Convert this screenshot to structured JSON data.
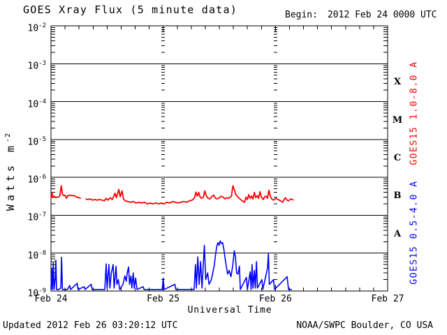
{
  "header": {
    "title": "GOES Xray Flux (5 minute data)",
    "begin_label": "Begin:",
    "begin_value": "2012 Feb 24 0000 UTC"
  },
  "footer": {
    "updated": "Updated 2012 Feb 26 03:20:12 UTC",
    "source": "NOAA/SWPC Boulder, CO USA"
  },
  "axes": {
    "xlabel": "Universal Time",
    "ylabel_base": "Watts m",
    "ylabel_sup": "-2",
    "y_tick_base": "10",
    "y_tick_exponents": [
      "-2",
      "-3",
      "-4",
      "-5",
      "-6",
      "-7",
      "-8",
      "-9"
    ],
    "x_tick_labels": [
      "Feb 24",
      "Feb 25",
      "Feb 26",
      "Feb 27"
    ],
    "class_letters": [
      "X",
      "M",
      "C",
      "B",
      "A"
    ]
  },
  "colors": {
    "axis": "#000000",
    "background": "#ffffff",
    "long_channel": "#ff0000",
    "short_channel": "#0000ff"
  },
  "chart_data": {
    "type": "line",
    "title": "GOES Xray Flux (5 minute data)",
    "xlabel": "Universal Time",
    "ylabel": "Watts m^-2",
    "x_unit": "hours since 2012 Feb 24 0000 UTC",
    "x_range_hours": [
      0,
      72
    ],
    "x_day_tick_hours": [
      0,
      24,
      48,
      72
    ],
    "x_minor_tick_hours": 3,
    "y_scale": "log",
    "y_limit_exponents": [
      -9,
      -2
    ],
    "grid_day_lines_hours": [
      24,
      48
    ],
    "flare_class_bands": {
      "X": [
        -4,
        -3
      ],
      "M": [
        -5,
        -4
      ],
      "C": [
        -6,
        -5
      ],
      "B": [
        -7,
        -6
      ],
      "A": [
        -8,
        -7
      ]
    },
    "series": [
      {
        "name": "GOES15 1.0-8.0 A",
        "color": "#ff0000",
        "points": [
          [
            0,
            3e-07
          ],
          [
            0.2,
            4e-07
          ],
          [
            0.4,
            2.9e-07
          ],
          [
            0.7,
            3.2e-07
          ],
          [
            1.0,
            2.9e-07
          ],
          [
            1.3,
            3e-07
          ],
          [
            1.6,
            3e-07
          ],
          [
            1.9,
            3.3e-07
          ],
          [
            2.2,
            6e-07
          ],
          [
            2.45,
            3.6e-07
          ],
          [
            2.7,
            3.3e-07
          ],
          [
            3.0,
            3.4e-07
          ],
          [
            3.3,
            2.8e-07
          ],
          [
            3.6,
            3.3e-07
          ],
          [
            4.0,
            3.4e-07
          ],
          [
            4.5,
            3.3e-07
          ],
          [
            5.0,
            3.3e-07
          ],
          [
            5.5,
            3e-07
          ],
          [
            6.0,
            2.9e-07
          ],
          [
            6.4,
            2.8e-07
          ],
          [
            6.7,
            null
          ],
          [
            7.4,
            2.7e-07
          ],
          [
            7.9,
            2.6e-07
          ],
          [
            8.4,
            2.7e-07
          ],
          [
            8.9,
            2.5e-07
          ],
          [
            9.4,
            2.6e-07
          ],
          [
            9.9,
            2.5e-07
          ],
          [
            10.4,
            2.6e-07
          ],
          [
            10.9,
            2.5e-07
          ],
          [
            11.4,
            2.4e-07
          ],
          [
            11.8,
            2.8e-07
          ],
          [
            12.2,
            2.5e-07
          ],
          [
            12.7,
            2.9e-07
          ],
          [
            13.1,
            2.6e-07
          ],
          [
            13.7,
            3.8e-07
          ],
          [
            14.0,
            2.9e-07
          ],
          [
            14.5,
            4.8e-07
          ],
          [
            14.8,
            3.1e-07
          ],
          [
            15.2,
            4.4e-07
          ],
          [
            15.5,
            2.7e-07
          ],
          [
            15.9,
            2.4e-07
          ],
          [
            16.4,
            2.3e-07
          ],
          [
            17.0,
            2.2e-07
          ],
          [
            17.6,
            2.3e-07
          ],
          [
            18.2,
            2.1e-07
          ],
          [
            18.8,
            2.2e-07
          ],
          [
            19.4,
            2.1e-07
          ],
          [
            20.0,
            2.2e-07
          ],
          [
            20.6,
            2e-07
          ],
          [
            21.2,
            2.1e-07
          ],
          [
            21.8,
            2e-07
          ],
          [
            22.4,
            2.1e-07
          ],
          [
            23.0,
            2e-07
          ],
          [
            23.6,
            2.1e-07
          ],
          [
            24.2,
            2e-07
          ],
          [
            24.8,
            2.2e-07
          ],
          [
            25.4,
            2.1e-07
          ],
          [
            26.0,
            2.3e-07
          ],
          [
            26.6,
            2.2e-07
          ],
          [
            27.2,
            2.1e-07
          ],
          [
            27.8,
            2.2e-07
          ],
          [
            28.4,
            2.3e-07
          ],
          [
            29.0,
            2.2e-07
          ],
          [
            29.6,
            2.4e-07
          ],
          [
            30.2,
            2.5e-07
          ],
          [
            30.7,
            2.9e-07
          ],
          [
            31.0,
            4.1e-07
          ],
          [
            31.3,
            3.2e-07
          ],
          [
            31.6,
            4e-07
          ],
          [
            31.9,
            3e-07
          ],
          [
            32.2,
            2.8e-07
          ],
          [
            32.6,
            3e-07
          ],
          [
            32.9,
            4.4e-07
          ],
          [
            33.2,
            3.3e-07
          ],
          [
            33.6,
            2.8e-07
          ],
          [
            34.0,
            2.7e-07
          ],
          [
            34.4,
            3.1e-07
          ],
          [
            34.8,
            3.4e-07
          ],
          [
            35.2,
            2.8e-07
          ],
          [
            35.6,
            2.7e-07
          ],
          [
            36.0,
            2.9e-07
          ],
          [
            36.4,
            3.2e-07
          ],
          [
            36.8,
            3e-07
          ],
          [
            37.2,
            2.7e-07
          ],
          [
            37.6,
            2.9e-07
          ],
          [
            38.0,
            2.8e-07
          ],
          [
            38.3,
            3e-07
          ],
          [
            38.6,
            3.2e-07
          ],
          [
            38.9,
            6e-07
          ],
          [
            39.2,
            4.8e-07
          ],
          [
            39.5,
            3.6e-07
          ],
          [
            39.9,
            3.1e-07
          ],
          [
            40.4,
            2.7e-07
          ],
          [
            40.9,
            2.4e-07
          ],
          [
            41.4,
            2.2e-07
          ],
          [
            41.7,
            3e-07
          ],
          [
            42.0,
            2.6e-07
          ],
          [
            42.3,
            3.5e-07
          ],
          [
            42.6,
            2.8e-07
          ],
          [
            42.9,
            3.2e-07
          ],
          [
            43.2,
            2.7e-07
          ],
          [
            43.5,
            4e-07
          ],
          [
            43.8,
            2.9e-07
          ],
          [
            44.1,
            3.3e-07
          ],
          [
            44.4,
            2.8e-07
          ],
          [
            44.7,
            4.2e-07
          ],
          [
            45.0,
            3e-07
          ],
          [
            45.4,
            2.6e-07
          ],
          [
            45.7,
            3.1e-07
          ],
          [
            46.0,
            3.2e-07
          ],
          [
            46.3,
            2.8e-07
          ],
          [
            46.6,
            4.6e-07
          ],
          [
            46.9,
            3.2e-07
          ],
          [
            47.2,
            2.7e-07
          ],
          [
            47.6,
            2.5e-07
          ],
          [
            48.1,
            2.8e-07
          ],
          [
            48.6,
            2.6e-07
          ],
          [
            49.1,
            2.4e-07
          ],
          [
            49.5,
            2.2e-07
          ],
          [
            50.1,
            2.9e-07
          ],
          [
            50.5,
            2.5e-07
          ],
          [
            50.8,
            2.4e-07
          ],
          [
            51.3,
            2.7e-07
          ],
          [
            51.9,
            2.5e-07
          ]
        ]
      },
      {
        "name": "GOES15 0.5-4.0 A",
        "color": "#0000ff",
        "points": [
          [
            0,
            1.1e-09
          ],
          [
            0.15,
            4e-09
          ],
          [
            0.3,
            1.1e-09
          ],
          [
            0.5,
            5.5e-09
          ],
          [
            0.65,
            1.1e-09
          ],
          [
            0.9,
            2e-09
          ],
          [
            1.05,
            6.5e-09
          ],
          [
            1.2,
            1.1e-09
          ],
          [
            1.6,
            1.1e-09
          ],
          [
            2.1,
            1.2e-09
          ],
          [
            2.25,
            7.8e-09
          ],
          [
            2.45,
            1.1e-09
          ],
          [
            3.5,
            1.1e-09
          ],
          [
            4.0,
            1.4e-09
          ],
          [
            4.2,
            1.1e-09
          ],
          [
            5.6,
            1.6e-09
          ],
          [
            5.8,
            1.1e-09
          ],
          [
            7.1,
            1.3e-09
          ],
          [
            7.3,
            1.1e-09
          ],
          [
            8.6,
            1.5e-09
          ],
          [
            8.8,
            1.1e-09
          ],
          [
            10.5,
            1.1e-09
          ],
          [
            11.5,
            1.1e-09
          ],
          [
            11.8,
            5.2e-09
          ],
          [
            12.0,
            1.2e-09
          ],
          [
            12.4,
            5e-09
          ],
          [
            12.6,
            1.2e-09
          ],
          [
            12.9,
            3e-09
          ],
          [
            13.3,
            5e-09
          ],
          [
            13.5,
            1.2e-09
          ],
          [
            13.9,
            4.5e-09
          ],
          [
            14.1,
            1.5e-09
          ],
          [
            14.4,
            2e-09
          ],
          [
            14.7,
            1.1e-09
          ],
          [
            15.4,
            1.5e-09
          ],
          [
            15.8,
            2.5e-09
          ],
          [
            16.1,
            1.8e-09
          ],
          [
            16.3,
            3e-09
          ],
          [
            16.6,
            4.3e-09
          ],
          [
            16.8,
            1.5e-09
          ],
          [
            17.1,
            2.5e-09
          ],
          [
            17.3,
            1.2e-09
          ],
          [
            17.6,
            3e-09
          ],
          [
            17.8,
            1.2e-09
          ],
          [
            18.1,
            2.2e-09
          ],
          [
            18.4,
            1.1e-09
          ],
          [
            19.7,
            1.3e-09
          ],
          [
            19.9,
            1.1e-09
          ],
          [
            23.8,
            1.1e-09
          ],
          [
            24.0,
            2.2e-09
          ],
          [
            24.2,
            1.1e-09
          ],
          [
            26.5,
            1.5e-09
          ],
          [
            26.7,
            1.1e-09
          ],
          [
            30.6,
            1.1e-09
          ],
          [
            30.9,
            5e-09
          ],
          [
            31.1,
            1.2e-09
          ],
          [
            31.4,
            8e-09
          ],
          [
            31.7,
            1.5e-09
          ],
          [
            32.0,
            6e-09
          ],
          [
            32.3,
            1.2e-09
          ],
          [
            32.8,
            1.6e-08
          ],
          [
            33.1,
            2e-09
          ],
          [
            33.5,
            3e-09
          ],
          [
            33.8,
            1.5e-09
          ],
          [
            34.3,
            2e-09
          ],
          [
            34.9,
            4.5e-09
          ],
          [
            35.2,
            9e-09
          ],
          [
            35.45,
            1.5e-08
          ],
          [
            35.7,
            1.9e-08
          ],
          [
            35.95,
            1.6e-08
          ],
          [
            36.2,
            2.1e-08
          ],
          [
            36.45,
            1.8e-08
          ],
          [
            36.7,
            1.9e-08
          ],
          [
            36.95,
            1.3e-08
          ],
          [
            37.2,
            8e-09
          ],
          [
            37.5,
            4.5e-09
          ],
          [
            37.8,
            2.8e-09
          ],
          [
            38.1,
            3.5e-09
          ],
          [
            38.5,
            2.4e-09
          ],
          [
            38.9,
            5e-09
          ],
          [
            39.2,
            1.15e-08
          ],
          [
            39.45,
            8e-09
          ],
          [
            39.7,
            3e-09
          ],
          [
            40.0,
            2.8e-09
          ],
          [
            40.3,
            4.5e-09
          ],
          [
            40.5,
            1.1e-09
          ],
          [
            41.8,
            2.3e-09
          ],
          [
            42.0,
            1.1e-09
          ],
          [
            42.6,
            3.2e-09
          ],
          [
            42.8,
            1.1e-09
          ],
          [
            43.0,
            5e-09
          ],
          [
            43.2,
            1.2e-09
          ],
          [
            43.5,
            3.5e-09
          ],
          [
            43.7,
            1.2e-09
          ],
          [
            43.95,
            6e-09
          ],
          [
            44.15,
            1.2e-09
          ],
          [
            45.1,
            2e-09
          ],
          [
            45.3,
            1.1e-09
          ],
          [
            46.3,
            4e-09
          ],
          [
            46.5,
            1e-08
          ],
          [
            46.7,
            1.5e-09
          ],
          [
            47.6,
            2e-09
          ],
          [
            47.8,
            1.1e-09
          ],
          [
            50.5,
            2.4e-09
          ],
          [
            50.8,
            1.1e-09
          ],
          [
            51.5,
            1.1e-09
          ]
        ]
      }
    ]
  }
}
